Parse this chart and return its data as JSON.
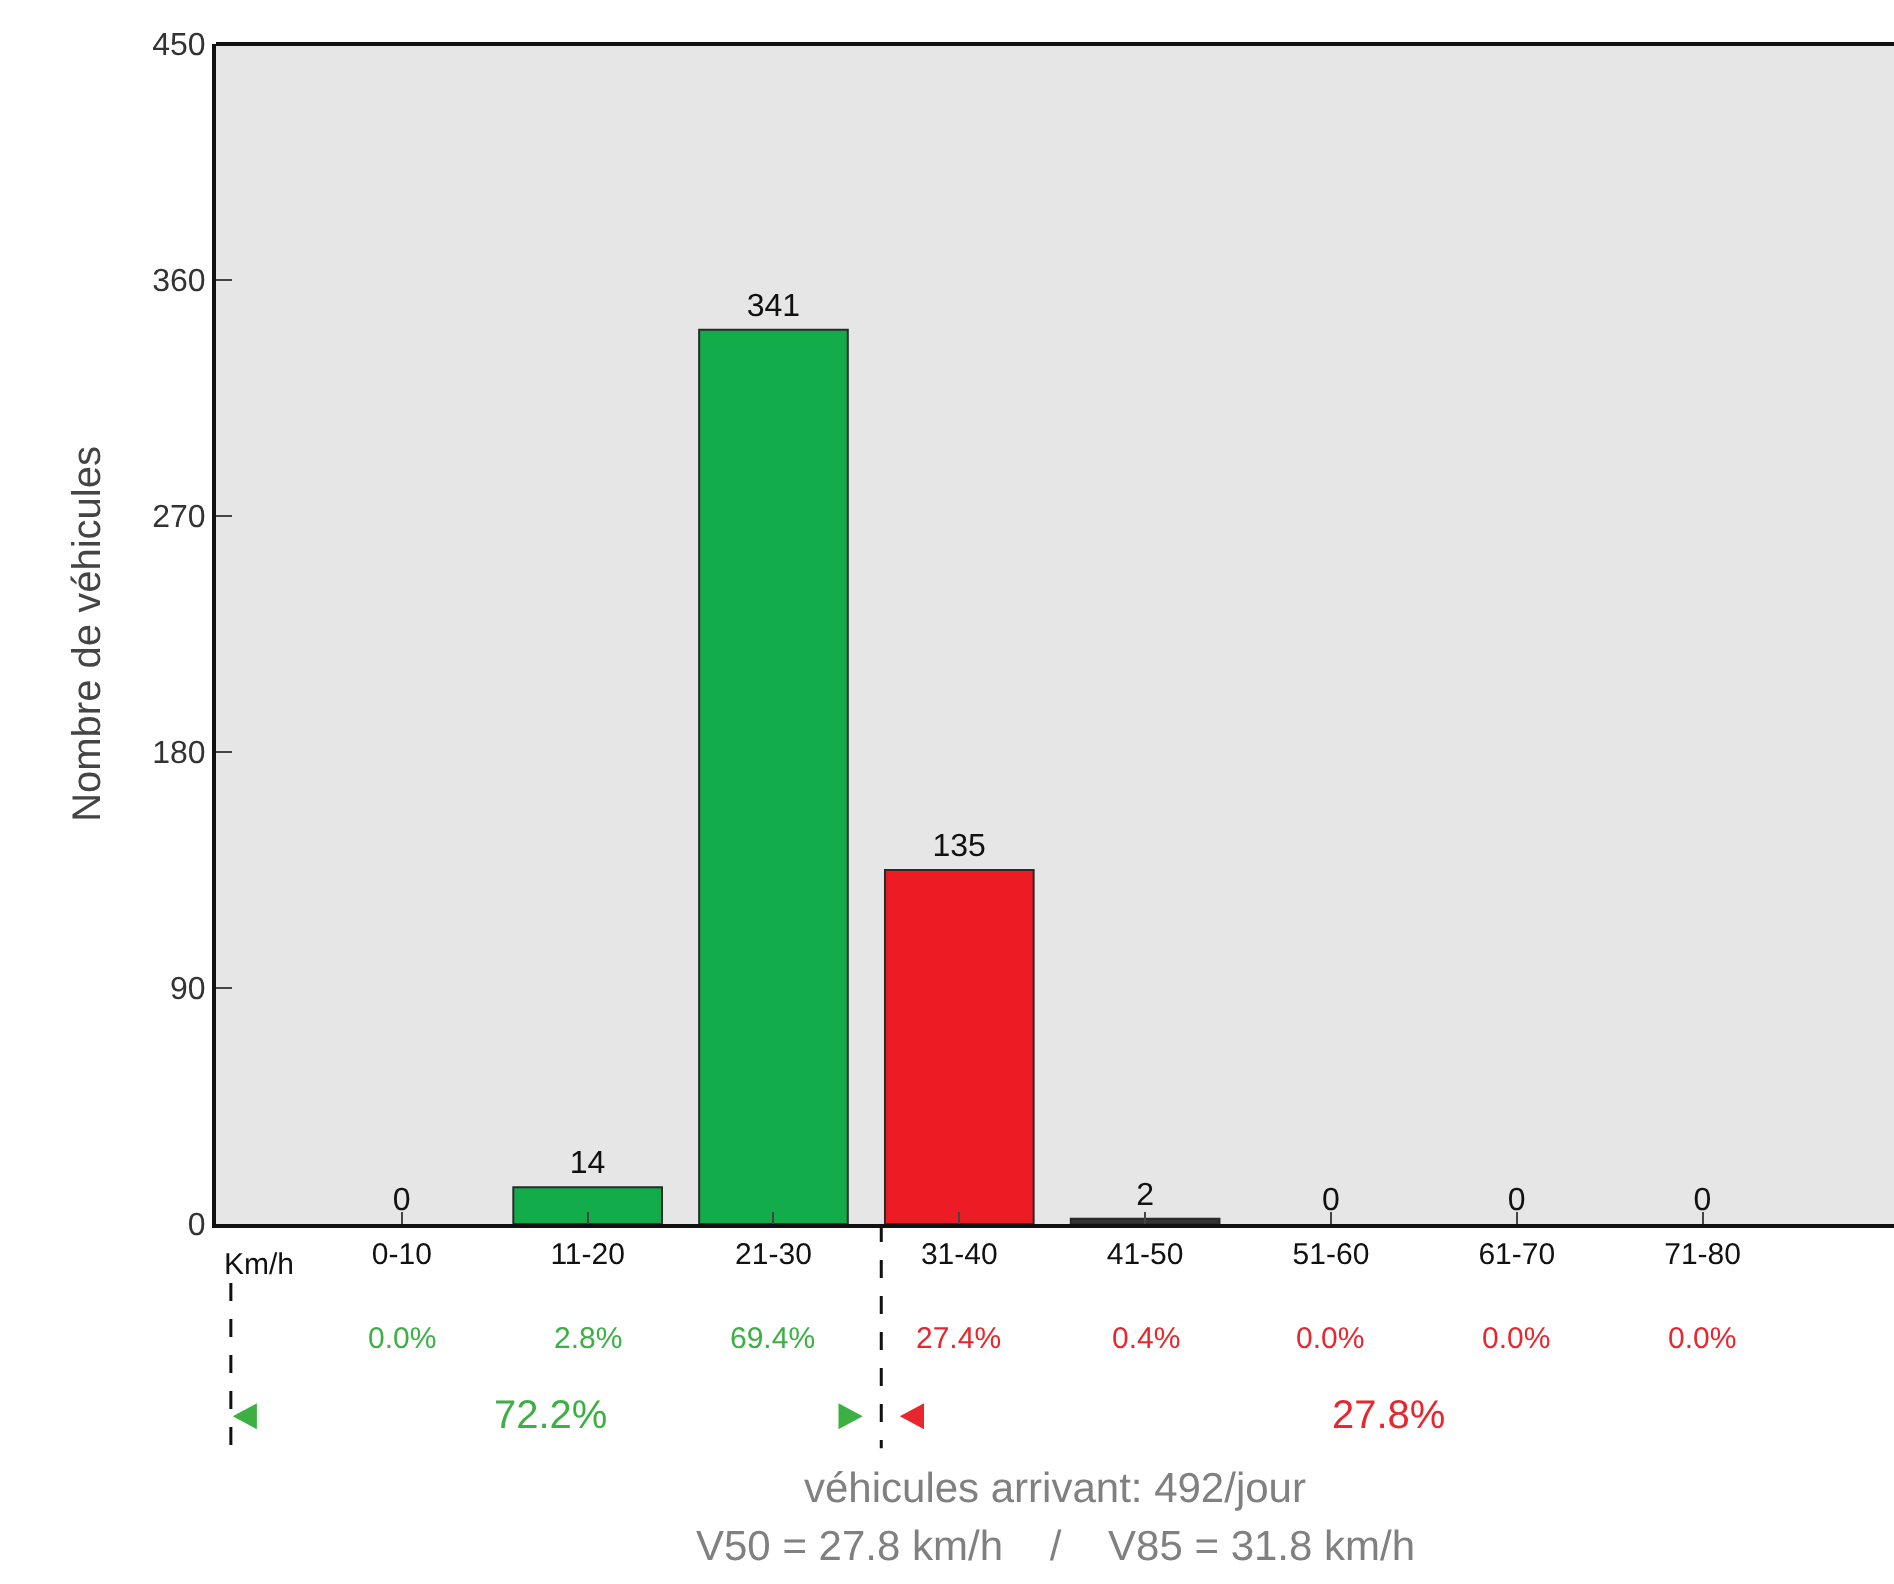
{
  "chart_data": {
    "type": "bar",
    "ylabel": "Nombre de véhicules",
    "xlabel": "Km/h",
    "categories": [
      "0-10",
      "11-20",
      "21-30",
      "31-40",
      "41-50",
      "51-60",
      "61-70",
      "71-80"
    ],
    "values": [
      0,
      14,
      341,
      135,
      2,
      0,
      0,
      0
    ],
    "colors": [
      "#12ad4a",
      "#12ad4a",
      "#12ad4a",
      "#ec1c24",
      "#333333",
      "#333333",
      "#333333",
      "#333333"
    ],
    "data_labels": true,
    "ylim": [
      0,
      450
    ],
    "yticks": [
      0,
      90,
      180,
      270,
      360,
      450
    ],
    "grid": false,
    "legend": false,
    "annotations": [
      "0.0%",
      "2.8%",
      "69.4%",
      "27.4%",
      "0.4%",
      "0.0%",
      "0.0%",
      "0.0%",
      "72.2%",
      "27.8%",
      "véhicules arrivant: 492/jour",
      "V50 = 27.8 km/h    /    V85 = 31.8 km/h"
    ]
  }
}
